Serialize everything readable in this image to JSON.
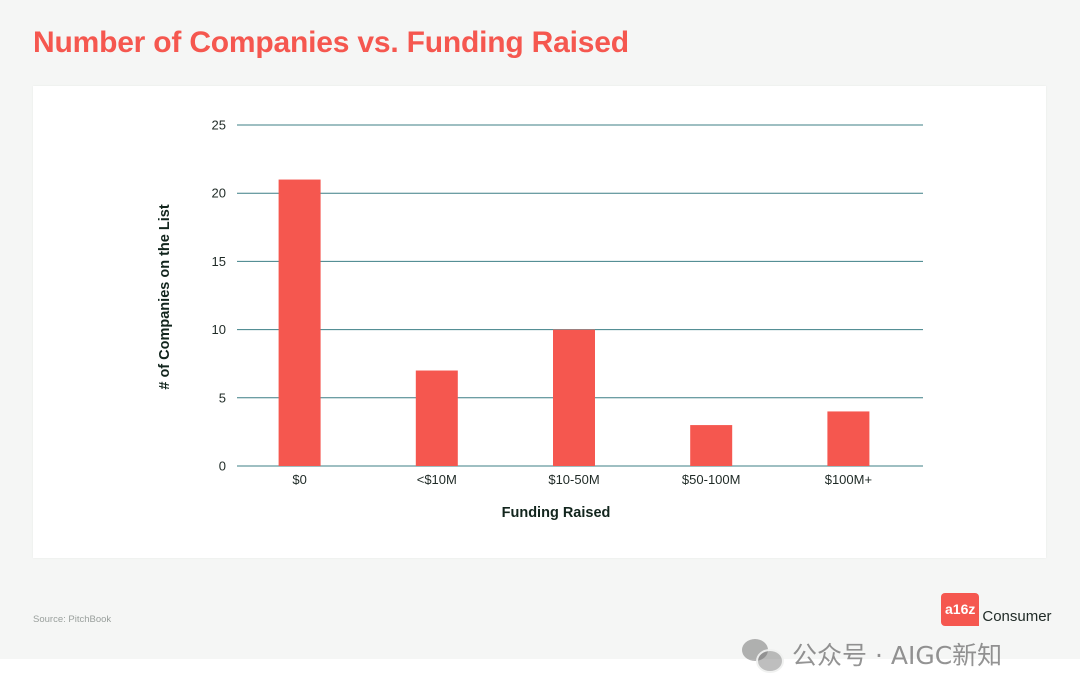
{
  "title": "Number of Companies vs. Funding Raised",
  "source": "Source: PitchBook",
  "brand": {
    "logo_text": "a16z",
    "name": "Consumer"
  },
  "watermark": "公众号 · AIGC新知",
  "colors": {
    "accent": "#f5574f",
    "gridline": "#3d7f86",
    "background": "#f5f6f5",
    "card": "#ffffff"
  },
  "chart_data": {
    "type": "bar",
    "categories": [
      "$0",
      "<$10M",
      "$10-50M",
      "$50-100M",
      "$100M+"
    ],
    "values": [
      21,
      7,
      10,
      3,
      4
    ],
    "xlabel": "Funding Raised",
    "ylabel": "# of Companies on the List",
    "ylim": [
      0,
      25
    ],
    "yticks": [
      0,
      5,
      10,
      15,
      20,
      25
    ],
    "grid": true,
    "bar_color": "#f5574f"
  }
}
